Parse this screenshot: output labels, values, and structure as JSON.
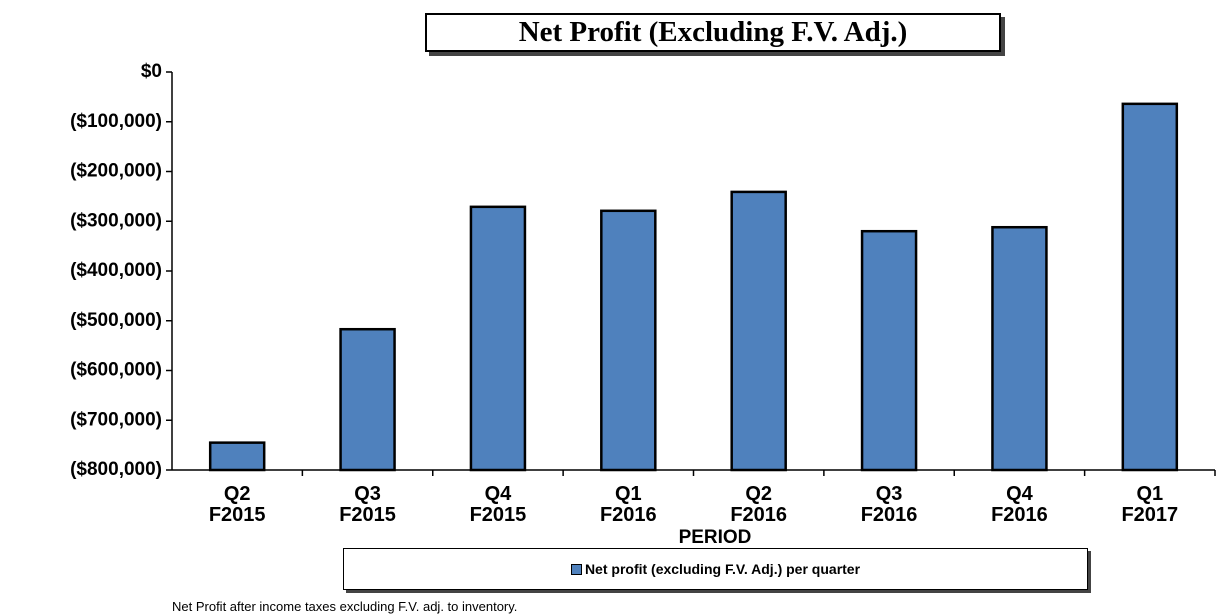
{
  "chart_data": {
    "type": "bar",
    "title": "Net Profit (Excluding F.V. Adj.)",
    "x_label": "PERIOD",
    "categories": [
      "Q2 F2015",
      "Q3 F2015",
      "Q4 F2015",
      "Q1 F2016",
      "Q2 F2016",
      "Q3 F2016",
      "Q4 F2016",
      "Q1 F2017"
    ],
    "series": [
      {
        "name": "Net profit (excluding F.V. Adj.) per quarter",
        "color": "#4f81bd",
        "values": [
          -745000,
          -517000,
          -271000,
          -279000,
          -241000,
          -320000,
          -312000,
          -64000
        ]
      }
    ],
    "ylim": [
      -800000,
      0
    ],
    "yticks": [
      {
        "value": 0,
        "label": "$0"
      },
      {
        "value": -100000,
        "label": "($100,000)"
      },
      {
        "value": -200000,
        "label": "($200,000)"
      },
      {
        "value": -300000,
        "label": "($300,000)"
      },
      {
        "value": -400000,
        "label": "($400,000)"
      },
      {
        "value": -500000,
        "label": "($500,000)"
      },
      {
        "value": -600000,
        "label": "($600,000)"
      },
      {
        "value": -700000,
        "label": "($700,000)"
      },
      {
        "value": -800000,
        "label": "($800,000)"
      }
    ],
    "grid": false,
    "footnote": "Net Profit after income taxes excluding F.V. adj. to inventory."
  }
}
